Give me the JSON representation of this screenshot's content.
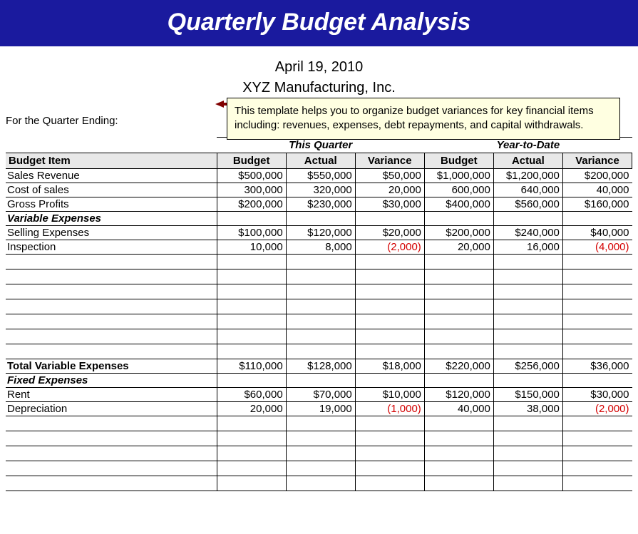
{
  "title": "Quarterly Budget Analysis",
  "date": "April 19, 2010",
  "company": "XYZ Manufacturing, Inc.",
  "quarter_ending_label": "For the Quarter Ending:",
  "tooltip": "This template helps you to organize budget variances for key financial items including: revenues, expenses, debt repayments, and capital withdrawals.",
  "colors": {
    "title_band_bg": "#1a1a9e",
    "title_text": "#ffffff",
    "header_cell_bg": "#e8e8e8",
    "tooltip_bg": "#ffffe1",
    "negative_text": "#d40000",
    "grid": "#000000"
  },
  "table": {
    "group_headers": {
      "this_quarter": "This Quarter",
      "year_to_date": "Year-to-Date"
    },
    "col_headers": {
      "budget_item": "Budget Item",
      "budget": "Budget",
      "actual": "Actual",
      "variance": "Variance"
    },
    "sections": [
      {
        "kind": "plain",
        "rows": [
          {
            "label": "Sales Revenue",
            "tq": [
              "$500,000",
              "$550,000",
              "$50,000"
            ],
            "ytd": [
              "$1,000,000",
              "$1,200,000",
              "$200,000"
            ]
          },
          {
            "label": "Cost of sales",
            "tq": [
              "300,000",
              "320,000",
              "20,000"
            ],
            "ytd": [
              "600,000",
              "640,000",
              "40,000"
            ]
          },
          {
            "label": "Gross Profits",
            "tq": [
              "$200,000",
              "$230,000",
              "$30,000"
            ],
            "ytd": [
              "$400,000",
              "$560,000",
              "$160,000"
            ]
          }
        ]
      },
      {
        "kind": "section",
        "header": "Variable Expenses",
        "rows": [
          {
            "label": "Selling Expenses",
            "tq": [
              "$100,000",
              "$120,000",
              "$20,000"
            ],
            "ytd": [
              "$200,000",
              "$240,000",
              "$40,000"
            ]
          },
          {
            "label": "Inspection",
            "tq": [
              "10,000",
              "8,000",
              "(2,000)"
            ],
            "ytd": [
              "20,000",
              "16,000",
              "(4,000)"
            ],
            "neg_tq_var": true,
            "neg_ytd_var": true
          }
        ],
        "empty_rows_after": 7,
        "total": {
          "label": "Total Variable Expenses",
          "tq": [
            "$110,000",
            "$128,000",
            "$18,000"
          ],
          "ytd": [
            "$220,000",
            "$256,000",
            "$36,000"
          ]
        }
      },
      {
        "kind": "section",
        "header": "Fixed Expenses",
        "rows": [
          {
            "label": "Rent",
            "tq": [
              "$60,000",
              "$70,000",
              "$10,000"
            ],
            "ytd": [
              "$120,000",
              "$150,000",
              "$30,000"
            ]
          },
          {
            "label": "Depreciation",
            "tq": [
              "20,000",
              "19,000",
              "(1,000)"
            ],
            "ytd": [
              "40,000",
              "38,000",
              "(2,000)"
            ],
            "neg_tq_var": true,
            "neg_ytd_var": true
          }
        ],
        "empty_rows_after": 5
      }
    ]
  }
}
